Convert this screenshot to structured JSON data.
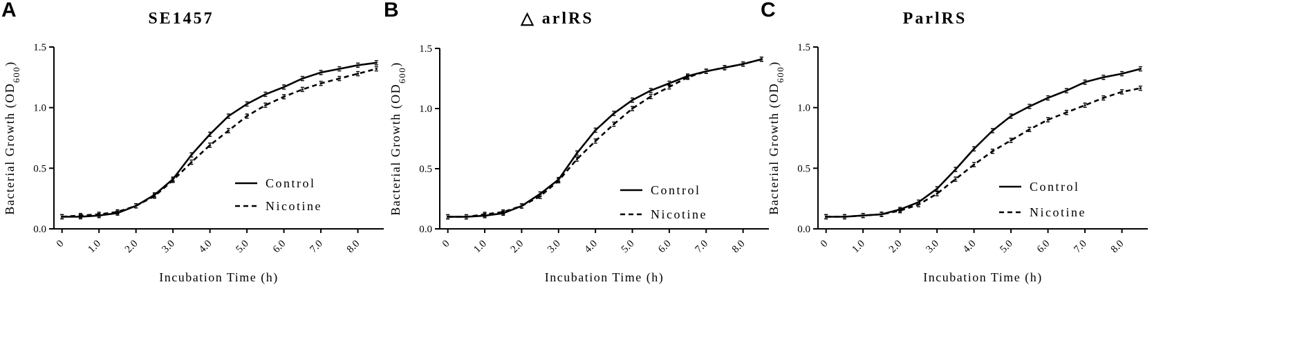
{
  "chart_data": [
    {
      "type": "line",
      "panel_label": "A",
      "title": "SE1457",
      "xlabel": "Incubation Time (h)",
      "ylabel": "Bacterial Growth (OD600)",
      "ylabel_main": "Bacterial Growth (OD",
      "ylabel_sub": "600",
      "ylabel_close": ")",
      "xlim": [
        -0.2,
        8.7
      ],
      "ylim": [
        0,
        1.5
      ],
      "x_ticks": [
        0,
        1,
        2,
        3,
        4,
        5,
        6,
        7,
        8
      ],
      "x_tick_labels": [
        "0",
        "1.0",
        "2.0",
        "3.0",
        "4.0",
        "5.0",
        "6.0",
        "7.0",
        "8.0"
      ],
      "y_ticks": [
        0,
        0.5,
        1.0,
        1.5
      ],
      "y_tick_labels": [
        "0.0",
        "0.5",
        "1.0",
        "1.5"
      ],
      "legend_position": "lower-right",
      "x": [
        0,
        0.5,
        1,
        1.5,
        2,
        2.5,
        3,
        3.5,
        4,
        4.5,
        5,
        5.5,
        6,
        6.5,
        7,
        7.5,
        8,
        8.5
      ],
      "series": [
        {
          "name": "Control",
          "style": "solid",
          "values": [
            0.1,
            0.1,
            0.11,
            0.13,
            0.19,
            0.28,
            0.41,
            0.61,
            0.78,
            0.93,
            1.03,
            1.11,
            1.17,
            1.24,
            1.29,
            1.32,
            1.35,
            1.37
          ]
        },
        {
          "name": "Nicotine",
          "style": "dashed",
          "values": [
            0.1,
            0.11,
            0.12,
            0.14,
            0.19,
            0.27,
            0.4,
            0.55,
            0.69,
            0.81,
            0.93,
            1.02,
            1.09,
            1.15,
            1.2,
            1.24,
            1.28,
            1.32
          ]
        }
      ]
    },
    {
      "type": "line",
      "panel_label": "B",
      "title": "△ arlRS",
      "xlabel": "Incubation Time (h)",
      "ylabel": "Bacterial Growth (OD600)",
      "ylabel_main": "Bacterial Growth (OD",
      "ylabel_sub": "600",
      "ylabel_close": ")",
      "xlim": [
        -0.2,
        8.7
      ],
      "ylim": [
        0,
        1.5
      ],
      "x_ticks": [
        0,
        1,
        2,
        3,
        4,
        5,
        6,
        7,
        8
      ],
      "x_tick_labels": [
        "0",
        "1.0",
        "2.0",
        "3.0",
        "4.0",
        "5.0",
        "6.0",
        "7.0",
        "8.0"
      ],
      "y_ticks": [
        0,
        0.5,
        1.0,
        1.5
      ],
      "y_tick_labels": [
        "0.0",
        "0.5",
        "1.0",
        "1.5"
      ],
      "legend_position": "lower-right",
      "x": [
        0,
        0.5,
        1,
        1.5,
        2,
        2.5,
        3,
        3.5,
        4,
        4.5,
        5,
        5.5,
        6,
        6.5,
        7,
        7.5,
        8,
        8.5
      ],
      "series": [
        {
          "name": "Control",
          "style": "solid",
          "values": [
            0.1,
            0.1,
            0.11,
            0.13,
            0.19,
            0.29,
            0.41,
            0.63,
            0.82,
            0.96,
            1.07,
            1.15,
            1.21,
            1.27,
            1.31,
            1.34,
            1.37,
            1.41
          ]
        },
        {
          "name": "Nicotine",
          "style": "dashed",
          "values": [
            0.1,
            0.1,
            0.12,
            0.14,
            0.19,
            0.27,
            0.4,
            0.58,
            0.73,
            0.87,
            1.0,
            1.1,
            1.18,
            1.26,
            1.31,
            1.34,
            1.37,
            1.41
          ]
        }
      ]
    },
    {
      "type": "line",
      "panel_label": "C",
      "title": "ParlRS",
      "xlabel": "Incubation Time (h)",
      "ylabel": "Bacterial Growth (OD600)",
      "ylabel_main": "Bacterial Growth (OD",
      "ylabel_sub": "600",
      "ylabel_close": ")",
      "xlim": [
        -0.2,
        8.7
      ],
      "ylim": [
        0,
        1.5
      ],
      "x_ticks": [
        0,
        1,
        2,
        3,
        4,
        5,
        6,
        7,
        8
      ],
      "x_tick_labels": [
        "0",
        "1.0",
        "2.0",
        "3.0",
        "4.0",
        "5.0",
        "6.0",
        "7.0",
        "8.0"
      ],
      "y_ticks": [
        0,
        0.5,
        1.0,
        1.5
      ],
      "y_tick_labels": [
        "0.0",
        "0.5",
        "1.0",
        "1.5"
      ],
      "legend_position": "lower-right",
      "x": [
        0,
        0.5,
        1,
        1.5,
        2,
        2.5,
        3,
        3.5,
        4,
        4.5,
        5,
        5.5,
        6,
        6.5,
        7,
        7.5,
        8,
        8.5
      ],
      "series": [
        {
          "name": "Control",
          "style": "solid",
          "values": [
            0.1,
            0.1,
            0.11,
            0.12,
            0.16,
            0.22,
            0.33,
            0.49,
            0.66,
            0.81,
            0.93,
            1.01,
            1.08,
            1.14,
            1.21,
            1.25,
            1.28,
            1.32
          ]
        },
        {
          "name": "Nicotine",
          "style": "dashed",
          "values": [
            0.1,
            0.1,
            0.11,
            0.12,
            0.15,
            0.2,
            0.29,
            0.41,
            0.53,
            0.64,
            0.73,
            0.82,
            0.9,
            0.96,
            1.02,
            1.08,
            1.13,
            1.16
          ]
        }
      ]
    }
  ]
}
